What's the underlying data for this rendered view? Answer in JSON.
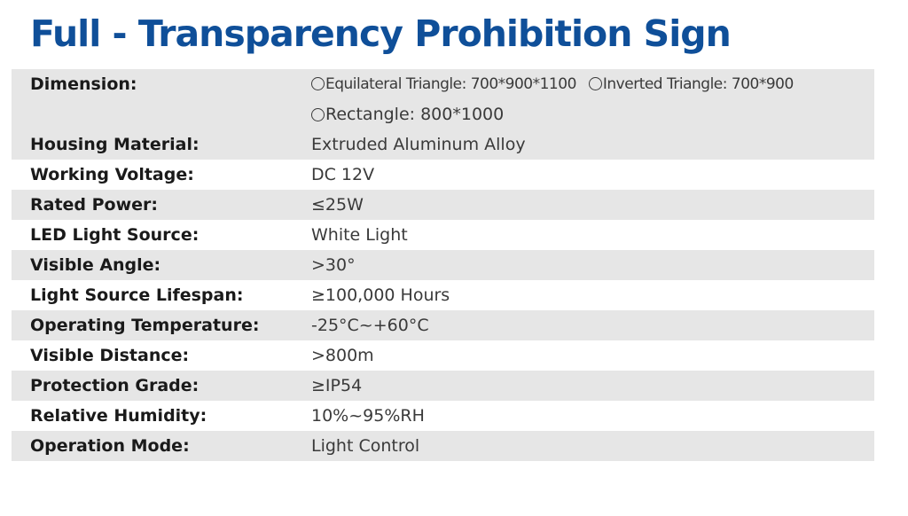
{
  "title": "Full - Transparency Prohibition Sign",
  "colors": {
    "title": "#0f4f99",
    "row_shade": "#e6e6e6"
  },
  "dimension": {
    "label": "Dimension:",
    "options": [
      "Equilateral Triangle: 700*900*1100",
      "Inverted Triangle: 700*900",
      "Rectangle: 800*1000"
    ]
  },
  "specs": [
    {
      "label": "Housing Material:",
      "value": "Extruded Aluminum Alloy"
    },
    {
      "label": "Working Voltage:",
      "value": "DC 12V"
    },
    {
      "label": "Rated Power:",
      "value": "≤25W"
    },
    {
      "label": "LED Light Source:",
      "value": "White Light"
    },
    {
      "label": "Visible Angle:",
      "value": ">30°"
    },
    {
      "label": "Light Source Lifespan:",
      "value": "≥100,000 Hours"
    },
    {
      "label": "Operating Temperature:",
      "value": "-25°C~+60°C"
    },
    {
      "label": "Visible Distance:",
      "value": ">800m"
    },
    {
      "label": "Protection Grade:",
      "value": "≥IP54"
    },
    {
      "label": "Relative Humidity:",
      "value": "10%~95%RH"
    },
    {
      "label": "Operation Mode:",
      "value": "Light Control"
    }
  ]
}
